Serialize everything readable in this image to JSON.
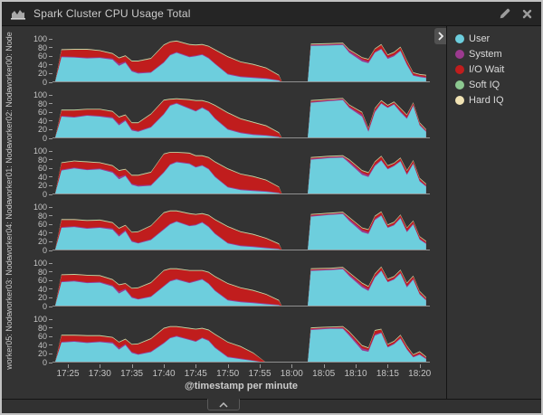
{
  "panel": {
    "title": "Spark Cluster CPU Usage Total"
  },
  "legend": {
    "items": [
      {
        "label": "User",
        "color": "#6DCEDD"
      },
      {
        "label": "System",
        "color": "#9C3A8F"
      },
      {
        "label": "I/O Wait",
        "color": "#C01D1D"
      },
      {
        "label": "Soft IQ",
        "color": "#8CC890"
      },
      {
        "label": "Hard IQ",
        "color": "#F1E3B4"
      }
    ]
  },
  "chart_data": {
    "type": "area",
    "stacked": true,
    "title": "Spark Cluster CPU Usage Total",
    "xlabel": "@timestamp per minute",
    "ylim": [
      0,
      100
    ],
    "y_ticks": [
      100,
      80,
      60,
      40,
      20,
      0
    ],
    "x_tick_minutes": [
      25,
      30,
      35,
      40,
      45,
      50,
      55,
      60,
      65,
      70,
      75,
      80
    ],
    "x_ticks": [
      "17:25",
      "17:30",
      "17:35",
      "17:40",
      "17:45",
      "17:50",
      "17:55",
      "18:00",
      "18:05",
      "18:10",
      "18:15",
      "18:20"
    ],
    "x_range_minutes": [
      22.6,
      81.6
    ],
    "series_names": [
      "User",
      "System",
      "I/O Wait",
      "Soft IQ",
      "Hard IQ"
    ],
    "soft_irq_base": 1,
    "hard_irq_base": 1,
    "x_minutes": [
      23,
      24,
      26,
      28,
      30,
      32,
      33,
      34,
      35,
      36,
      38,
      40,
      41,
      42,
      44,
      45,
      46,
      47,
      48,
      50,
      52,
      54,
      56,
      58,
      58.5,
      62.5,
      63,
      66,
      68,
      69,
      71,
      72,
      73,
      74,
      75,
      76,
      77,
      78,
      79,
      80,
      81
    ],
    "charts": [
      {
        "label": "worker00: Node",
        "user": [
          0,
          58,
          57,
          55,
          56,
          52,
          38,
          45,
          25,
          20,
          22,
          45,
          62,
          68,
          58,
          60,
          63,
          55,
          42,
          18,
          12,
          10,
          8,
          4,
          0,
          0,
          84,
          85,
          86,
          68,
          48,
          44,
          68,
          76,
          54,
          60,
          72,
          40,
          15,
          12,
          10
        ],
        "system": [
          0,
          2,
          2,
          2,
          2,
          3,
          5,
          3,
          3,
          3,
          2,
          2,
          2,
          2,
          2,
          2,
          2,
          2,
          2,
          2,
          2,
          2,
          2,
          1,
          0,
          0,
          2,
          2,
          2,
          4,
          5,
          4,
          2,
          2,
          3,
          3,
          2,
          3,
          2,
          2,
          2
        ],
        "io_wait": [
          0,
          14,
          16,
          18,
          14,
          10,
          12,
          12,
          20,
          25,
          30,
          38,
          28,
          24,
          26,
          23,
          21,
          25,
          30,
          38,
          32,
          28,
          22,
          10,
          0,
          0,
          1,
          1,
          1,
          2,
          3,
          4,
          6,
          8,
          5,
          5,
          6,
          6,
          4,
          3,
          3
        ]
      },
      {
        "label": "worker02: Node",
        "user": [
          0,
          50,
          48,
          52,
          50,
          46,
          30,
          40,
          18,
          15,
          25,
          55,
          75,
          80,
          68,
          62,
          70,
          62,
          45,
          20,
          12,
          8,
          6,
          3,
          0,
          0,
          82,
          86,
          88,
          70,
          50,
          15,
          60,
          80,
          70,
          78,
          60,
          45,
          75,
          30,
          15
        ],
        "system": [
          0,
          2,
          2,
          2,
          2,
          3,
          4,
          3,
          3,
          2,
          2,
          2,
          2,
          2,
          2,
          2,
          2,
          2,
          2,
          2,
          2,
          2,
          2,
          1,
          0,
          0,
          2,
          2,
          2,
          3,
          5,
          4,
          3,
          2,
          2,
          2,
          3,
          3,
          2,
          2,
          2
        ],
        "io_wait": [
          0,
          12,
          14,
          12,
          14,
          12,
          14,
          10,
          14,
          18,
          28,
          30,
          12,
          8,
          18,
          22,
          14,
          18,
          28,
          36,
          30,
          26,
          20,
          8,
          0,
          0,
          2,
          1,
          1,
          3,
          4,
          3,
          5,
          4,
          3,
          3,
          5,
          5,
          4,
          3,
          2
        ]
      },
      {
        "label": "worker01: Node",
        "user": [
          0,
          55,
          60,
          56,
          58,
          50,
          35,
          42,
          22,
          18,
          20,
          50,
          68,
          74,
          70,
          62,
          66,
          58,
          40,
          16,
          10,
          8,
          6,
          3,
          0,
          0,
          80,
          84,
          85,
          72,
          45,
          40,
          65,
          78,
          58,
          65,
          76,
          45,
          70,
          30,
          18
        ],
        "system": [
          0,
          2,
          2,
          2,
          2,
          3,
          5,
          3,
          3,
          3,
          2,
          2,
          2,
          2,
          2,
          2,
          2,
          2,
          2,
          2,
          2,
          2,
          2,
          1,
          0,
          0,
          2,
          2,
          2,
          4,
          5,
          4,
          3,
          2,
          2,
          2,
          2,
          3,
          2,
          2,
          2
        ],
        "io_wait": [
          0,
          15,
          14,
          16,
          12,
          12,
          14,
          12,
          18,
          22,
          28,
          40,
          26,
          20,
          22,
          24,
          20,
          24,
          32,
          40,
          34,
          30,
          24,
          12,
          0,
          0,
          2,
          1,
          1,
          3,
          4,
          5,
          6,
          7,
          5,
          4,
          5,
          6,
          5,
          4,
          3
        ]
      },
      {
        "label": "worker04: Node",
        "user": [
          0,
          52,
          54,
          50,
          52,
          48,
          32,
          44,
          20,
          16,
          24,
          48,
          60,
          66,
          56,
          58,
          64,
          54,
          38,
          16,
          10,
          8,
          5,
          3,
          0,
          0,
          78,
          82,
          84,
          68,
          42,
          38,
          70,
          80,
          52,
          58,
          74,
          42,
          60,
          25,
          15
        ],
        "system": [
          0,
          2,
          2,
          2,
          2,
          3,
          4,
          3,
          3,
          2,
          2,
          2,
          2,
          2,
          2,
          2,
          2,
          2,
          2,
          2,
          2,
          2,
          2,
          1,
          0,
          0,
          2,
          2,
          2,
          4,
          5,
          4,
          3,
          2,
          2,
          2,
          2,
          3,
          2,
          2,
          2
        ],
        "io_wait": [
          0,
          16,
          14,
          16,
          15,
          12,
          14,
          10,
          18,
          24,
          30,
          36,
          28,
          22,
          26,
          22,
          18,
          24,
          30,
          36,
          30,
          26,
          20,
          10,
          0,
          0,
          2,
          1,
          1,
          3,
          4,
          5,
          5,
          6,
          4,
          4,
          5,
          6,
          5,
          4,
          3
        ]
      },
      {
        "label": "worker03: Node",
        "user": [
          0,
          56,
          58,
          54,
          55,
          46,
          30,
          38,
          20,
          16,
          22,
          46,
          58,
          62,
          54,
          58,
          62,
          52,
          36,
          14,
          10,
          8,
          5,
          3,
          0,
          0,
          82,
          84,
          86,
          70,
          44,
          36,
          66,
          82,
          56,
          62,
          76,
          44,
          62,
          28,
          14
        ],
        "system": [
          0,
          2,
          2,
          2,
          2,
          3,
          5,
          3,
          3,
          2,
          2,
          2,
          2,
          2,
          2,
          2,
          2,
          2,
          2,
          2,
          2,
          2,
          2,
          1,
          0,
          0,
          2,
          2,
          2,
          4,
          5,
          4,
          3,
          2,
          2,
          2,
          2,
          3,
          2,
          2,
          2
        ],
        "io_wait": [
          0,
          14,
          13,
          15,
          13,
          12,
          14,
          11,
          18,
          24,
          30,
          34,
          26,
          22,
          26,
          22,
          18,
          24,
          30,
          36,
          30,
          26,
          20,
          9,
          0,
          0,
          2,
          1,
          1,
          3,
          4,
          5,
          5,
          6,
          4,
          4,
          5,
          6,
          5,
          4,
          3
        ]
      },
      {
        "label": "worker05: Node",
        "user": [
          0,
          46,
          48,
          45,
          47,
          44,
          30,
          40,
          22,
          18,
          24,
          44,
          56,
          60,
          52,
          48,
          56,
          50,
          34,
          12,
          8,
          4,
          0,
          0,
          0,
          0,
          75,
          78,
          78,
          62,
          28,
          25,
          62,
          68,
          35,
          42,
          55,
          30,
          12,
          18,
          8
        ],
        "system": [
          0,
          2,
          2,
          2,
          2,
          3,
          4,
          3,
          3,
          2,
          2,
          2,
          2,
          2,
          2,
          2,
          2,
          2,
          2,
          2,
          2,
          1,
          0,
          0,
          0,
          0,
          2,
          2,
          2,
          4,
          5,
          4,
          3,
          2,
          2,
          2,
          2,
          2,
          2,
          2,
          2
        ],
        "io_wait": [
          0,
          14,
          12,
          14,
          12,
          10,
          12,
          10,
          16,
          22,
          28,
          32,
          24,
          20,
          24,
          26,
          20,
          22,
          28,
          32,
          26,
          16,
          0,
          0,
          0,
          0,
          2,
          1,
          2,
          4,
          5,
          4,
          8,
          6,
          4,
          4,
          5,
          5,
          3,
          4,
          2
        ]
      }
    ]
  }
}
